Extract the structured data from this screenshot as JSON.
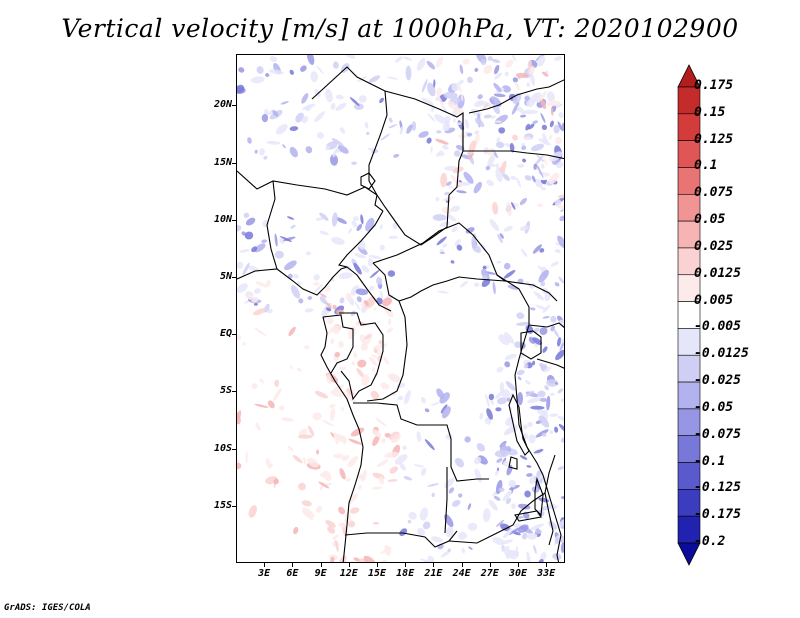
{
  "title": "Vertical velocity [m/s] at 1000hPa, VT: 2020102900",
  "credit": "GrADS: IGES/COLA",
  "map": {
    "lat_labels": [
      "20N",
      "15N",
      "10N",
      "5N",
      "EQ",
      "5S",
      "10S",
      "15S"
    ],
    "lon_labels": [
      "3E",
      "6E",
      "9E",
      "12E",
      "15E",
      "18E",
      "21E",
      "24E",
      "27E",
      "30E",
      "33E"
    ],
    "lon_range": [
      0,
      35
    ],
    "lat_range": [
      -20,
      24.5
    ]
  },
  "colorbar": {
    "labels": [
      "0.175",
      "0.15",
      "0.125",
      "0.1",
      "0.075",
      "0.05",
      "0.025",
      "0.0125",
      "0.005",
      "-0.005",
      "-0.0125",
      "-0.025",
      "-0.05",
      "-0.075",
      "-0.1",
      "-0.125",
      "-0.175",
      "-0.2"
    ],
    "colors": [
      "#b21e1e",
      "#c42c2c",
      "#d43c3c",
      "#e05656",
      "#e87474",
      "#f09494",
      "#f6b4b4",
      "#fad2d2",
      "#fdeaea",
      "#ffffff",
      "#e6e6fa",
      "#cfcff5",
      "#b2b2ee",
      "#9696e4",
      "#7878d8",
      "#5a5acc",
      "#3c3cbe",
      "#2222b0",
      "#0c0c9a"
    ]
  }
}
